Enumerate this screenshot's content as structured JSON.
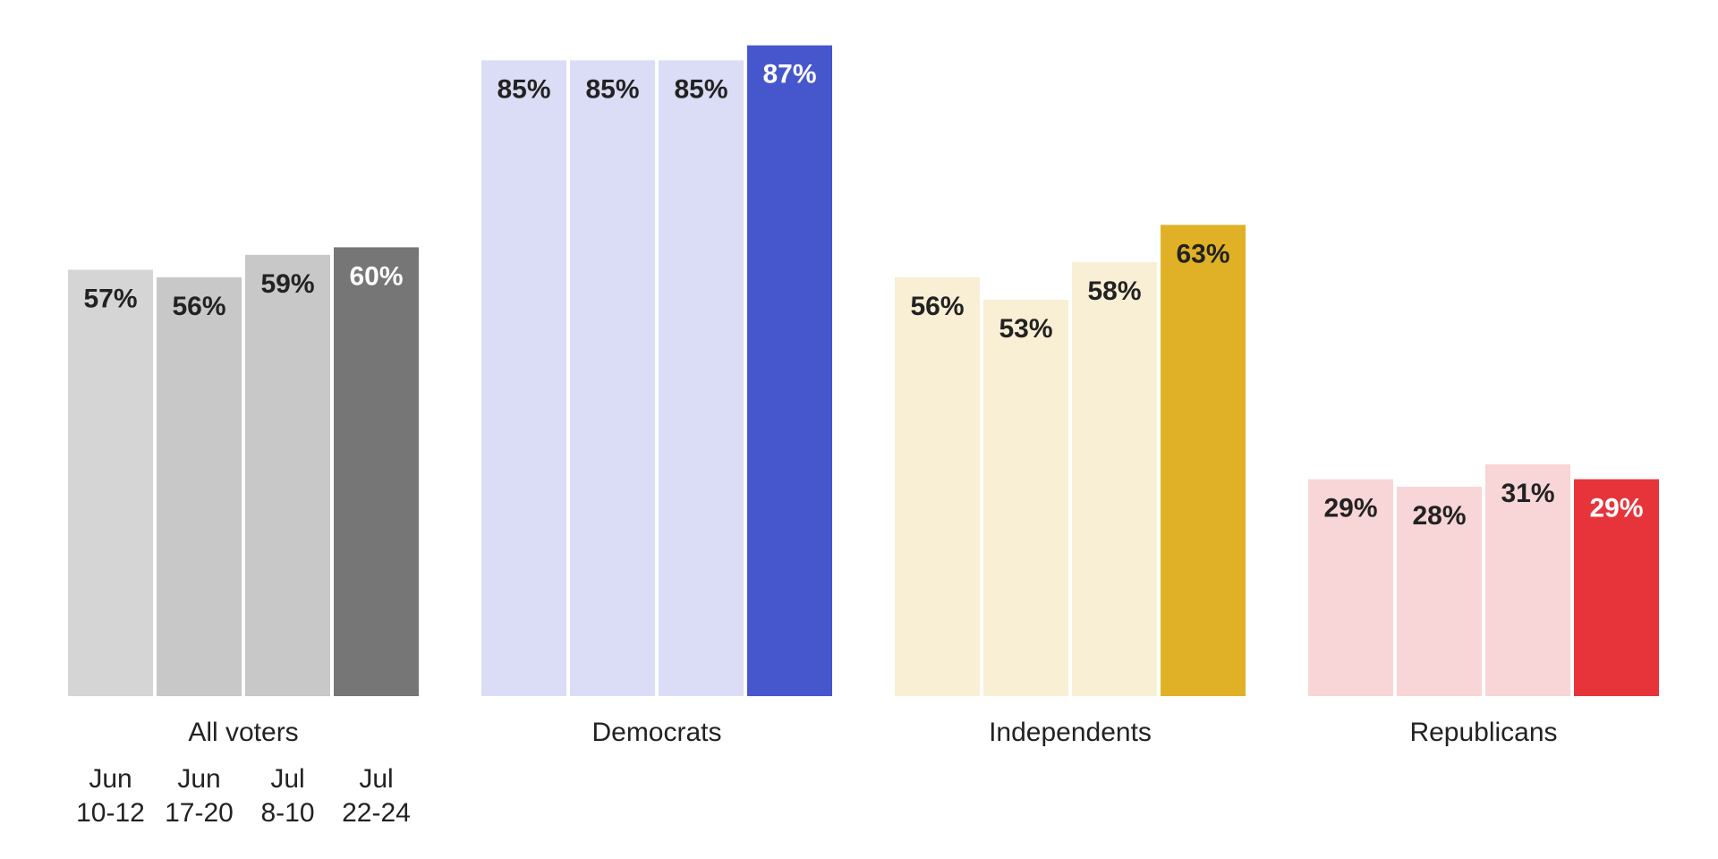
{
  "chart_data": {
    "type": "bar",
    "title": "",
    "xlabel": "",
    "ylabel": "",
    "ylim": [
      0,
      100
    ],
    "grid": false,
    "legend": "none",
    "periods": [
      "Jun 10-12",
      "Jun 17-20",
      "Jul 8-10",
      "Jul 22-24"
    ],
    "period_labels": [
      {
        "line1": "Jun",
        "line2": "10-12"
      },
      {
        "line1": "Jun",
        "line2": "17-20"
      },
      {
        "line1": "Jul",
        "line2": "8-10"
      },
      {
        "line1": "Jul",
        "line2": "22-24"
      }
    ],
    "categories": [
      "All voters",
      "Democrats",
      "Independents",
      "Republicans"
    ],
    "groups": [
      {
        "name": "All voters",
        "values": [
          57,
          56,
          59,
          60
        ],
        "labels": [
          "57%",
          "56%",
          "59%",
          "60%"
        ],
        "colors": [
          "#d5d5d5",
          "#c8c8c8",
          "#c8c8c8",
          "#767676"
        ],
        "text_colors": [
          "#222222",
          "#222222",
          "#222222",
          "#ffffff"
        ]
      },
      {
        "name": "Democrats",
        "values": [
          85,
          85,
          85,
          87
        ],
        "labels": [
          "85%",
          "85%",
          "85%",
          "87%"
        ],
        "colors": [
          "#dbdcf5",
          "#dbdcf5",
          "#dbdcf5",
          "#4657cd"
        ],
        "text_colors": [
          "#222222",
          "#222222",
          "#222222",
          "#ffffff"
        ]
      },
      {
        "name": "Independents",
        "values": [
          56,
          53,
          58,
          63
        ],
        "labels": [
          "56%",
          "53%",
          "58%",
          "63%"
        ],
        "colors": [
          "#f8efd4",
          "#f8efd4",
          "#f8efd4",
          "#e0b126"
        ],
        "text_colors": [
          "#222222",
          "#222222",
          "#222222",
          "#222222"
        ]
      },
      {
        "name": "Republicans",
        "values": [
          29,
          28,
          31,
          29
        ],
        "labels": [
          "29%",
          "28%",
          "31%",
          "29%"
        ],
        "colors": [
          "#f8d5d6",
          "#f8d5d6",
          "#f8d5d6",
          "#e7343a"
        ],
        "text_colors": [
          "#222222",
          "#222222",
          "#222222",
          "#ffffff"
        ]
      }
    ]
  }
}
